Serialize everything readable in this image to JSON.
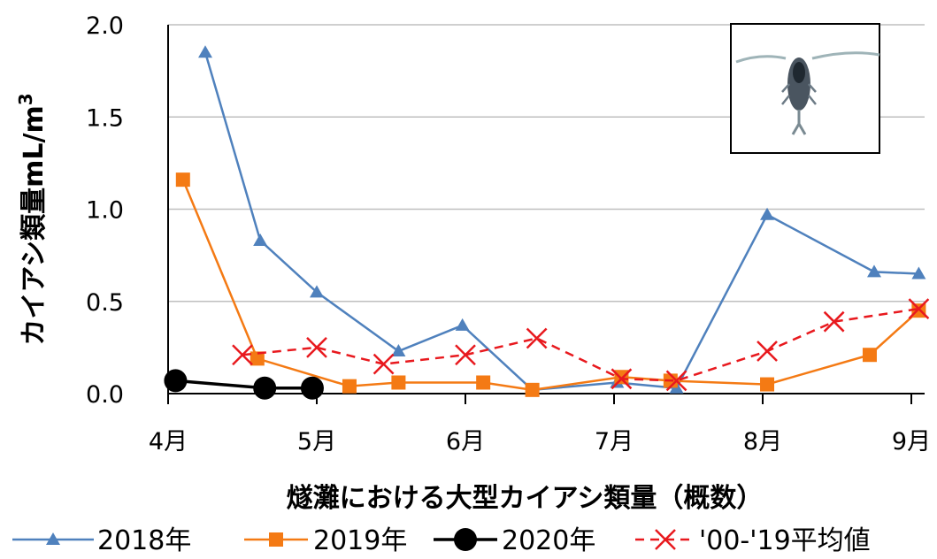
{
  "chart_data": {
    "type": "line",
    "xlabel": "燧灘における大型カイアシ類量（概数）",
    "ylabel": "カイアシ類量mL/m",
    "ylabel_sup": "3",
    "ylim": [
      0,
      2.0
    ],
    "yticks": [
      "0.0",
      "0.5",
      "1.0",
      "1.5",
      "2.0"
    ],
    "ytick_values": [
      0,
      0.5,
      1.0,
      1.5,
      2.0
    ],
    "xlim": [
      4,
      9.2
    ],
    "xticks": [
      "4月",
      "5月",
      "6月",
      "7月",
      "8月",
      "9月"
    ],
    "xtick_values": [
      4,
      5,
      6,
      7,
      8,
      9
    ],
    "grid": true,
    "legend_position": "bottom",
    "series": [
      {
        "name": "2018年",
        "color": "#4f81bd",
        "marker": "triangle",
        "dash": false,
        "x": [
          4.25,
          4.62,
          5.0,
          5.55,
          5.98,
          6.45,
          7.02,
          7.42,
          8.03,
          8.75,
          9.05
        ],
        "y": [
          1.85,
          0.83,
          0.55,
          0.23,
          0.37,
          0.02,
          0.06,
          0.03,
          0.97,
          0.66,
          0.65
        ]
      },
      {
        "name": "2019年",
        "color": "#f47a14",
        "marker": "square",
        "dash": false,
        "x": [
          4.1,
          4.6,
          5.22,
          5.55,
          6.12,
          6.45,
          7.05,
          7.38,
          8.03,
          8.72,
          9.05
        ],
        "y": [
          1.16,
          0.19,
          0.04,
          0.06,
          0.06,
          0.02,
          0.09,
          0.07,
          0.05,
          0.21,
          0.45
        ]
      },
      {
        "name": "2020年",
        "color": "#000000",
        "marker": "circle",
        "dash": false,
        "x": [
          4.05,
          4.65,
          4.97
        ],
        "y": [
          0.07,
          0.03,
          0.03
        ]
      },
      {
        "name": "'00-'19平均値",
        "color": "#e8191e",
        "marker": "x",
        "dash": true,
        "x": [
          4.5,
          5.0,
          5.45,
          6.0,
          6.48,
          7.05,
          7.42,
          8.03,
          8.48,
          9.05
        ],
        "y": [
          0.21,
          0.25,
          0.16,
          0.21,
          0.3,
          0.08,
          0.07,
          0.23,
          0.39,
          0.46
        ]
      }
    ]
  },
  "inset": {
    "icon": "copepod-photo-icon"
  }
}
